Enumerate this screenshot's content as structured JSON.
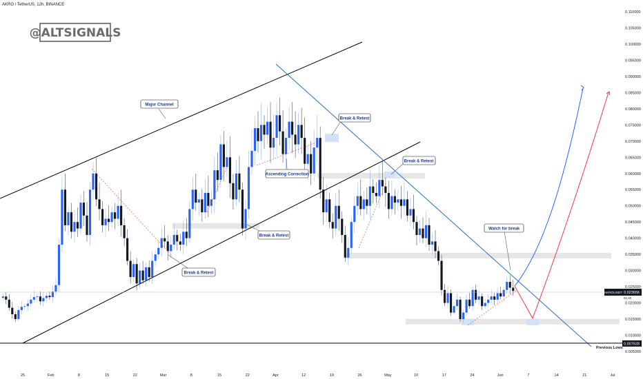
{
  "header": {
    "title": "AKRO / TetherUS, 12h, BINANCE"
  },
  "watermark": "@ALTSIGNALS",
  "chart_data": {
    "type": "candlestick",
    "symbol": "AKROUSDT",
    "ylim": [
      0.005,
      0.11
    ],
    "yticks": [
      "0.110000",
      "0.105000",
      "0.100000",
      "0.095000",
      "0.090000",
      "0.085000",
      "0.080000",
      "0.075000",
      "0.070000",
      "0.065000",
      "0.060000",
      "0.055000",
      "0.050000",
      "0.045000",
      "0.040000",
      "0.035000",
      "0.030000",
      "0.025000",
      "0.020000",
      "0.015000",
      "0.010000",
      "0.005000"
    ],
    "xticks": [
      "25",
      "Feb",
      "8",
      "15",
      "22",
      "Mar",
      "8",
      "15",
      "22",
      "Apr",
      "12",
      "19",
      "26",
      "May",
      "10",
      "17",
      "24",
      "Jun",
      "7",
      "14",
      "21",
      "Jul"
    ],
    "last_price": {
      "label": "AKROUSDT",
      "value": "0.023656",
      "countdown": "01:40"
    },
    "previous_lows": {
      "value": "0.007628",
      "label": "Previous Lows"
    },
    "close_series": [
      0.022,
      0.021,
      0.0185,
      0.0165,
      0.015,
      0.0178,
      0.0188,
      0.019,
      0.0198,
      0.021,
      0.0218,
      0.022,
      0.0205,
      0.0215,
      0.0222,
      0.0218,
      0.0235,
      0.0255,
      0.038,
      0.055,
      0.044,
      0.048,
      0.042,
      0.045,
      0.043,
      0.051,
      0.047,
      0.041,
      0.055,
      0.06,
      0.052,
      0.049,
      0.044,
      0.046,
      0.045,
      0.048,
      0.046,
      0.05,
      0.044,
      0.04,
      0.033,
      0.028,
      0.032,
      0.026,
      0.03,
      0.027,
      0.031,
      0.028,
      0.033,
      0.035,
      0.037,
      0.04,
      0.039,
      0.036,
      0.038,
      0.041,
      0.039,
      0.038,
      0.042,
      0.04,
      0.049,
      0.055,
      0.051,
      0.052,
      0.048,
      0.054,
      0.05,
      0.052,
      0.061,
      0.058,
      0.069,
      0.062,
      0.065,
      0.057,
      0.052,
      0.06,
      0.055,
      0.043,
      0.049,
      0.062,
      0.067,
      0.074,
      0.07,
      0.075,
      0.072,
      0.076,
      0.068,
      0.071,
      0.078,
      0.073,
      0.066,
      0.071,
      0.076,
      0.072,
      0.069,
      0.075,
      0.071,
      0.063,
      0.066,
      0.06,
      0.068,
      0.071,
      0.055,
      0.048,
      0.052,
      0.045,
      0.043,
      0.05,
      0.046,
      0.041,
      0.034,
      0.037,
      0.045,
      0.05,
      0.053,
      0.049,
      0.052,
      0.05,
      0.056,
      0.054,
      0.053,
      0.058,
      0.056,
      0.054,
      0.049,
      0.053,
      0.051,
      0.052,
      0.05,
      0.052,
      0.047,
      0.049,
      0.045,
      0.041,
      0.043,
      0.04,
      0.044,
      0.038,
      0.039,
      0.036,
      0.033,
      0.024,
      0.02,
      0.023,
      0.017,
      0.019,
      0.021,
      0.015,
      0.017,
      0.021,
      0.019,
      0.024,
      0.021,
      0.022,
      0.019,
      0.02,
      0.021,
      0.022,
      0.021,
      0.023,
      0.022,
      0.024,
      0.0265,
      0.0247,
      0.0237
    ],
    "annotations": [
      {
        "label": "Major Channel",
        "type": "callout"
      },
      {
        "label": "Break & Retest",
        "type": "callout"
      },
      {
        "label": "Break & Retest",
        "type": "callout"
      },
      {
        "label": "Break & Retest",
        "type": "callout"
      },
      {
        "label": "Break & Retest",
        "type": "callout"
      },
      {
        "label": "Ascending Correction",
        "type": "callout"
      },
      {
        "label": "Watch for break",
        "type": "callout"
      }
    ],
    "levels": [
      {
        "name": "resistance-1",
        "price": 0.0593
      },
      {
        "name": "resistance-2",
        "price": 0.0438
      },
      {
        "name": "resistance-3",
        "price": 0.0346
      },
      {
        "name": "support-1",
        "price": 0.0142
      }
    ],
    "projections": [
      {
        "name": "blue-path",
        "color": "#2962ff",
        "target": 0.0855
      },
      {
        "name": "red-path",
        "color": "#f23645",
        "target": 0.0847
      }
    ],
    "colors": {
      "up": "#2962ff",
      "down": "#131722",
      "channel": "#000000",
      "trend": "#2a6fbf",
      "level_zone": "#e6e6e6",
      "label_border": "#131722"
    }
  }
}
